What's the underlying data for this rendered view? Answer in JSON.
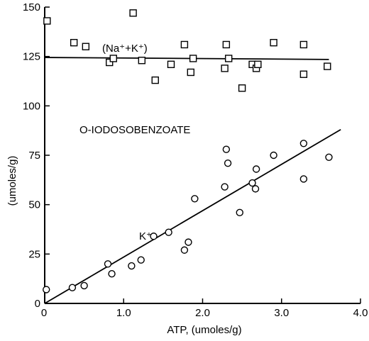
{
  "chart_data": {
    "type": "scatter",
    "title": "",
    "xlabel": "ATP, (umoles/g)",
    "ylabel": "(umoles/g)",
    "xlim": [
      0,
      4.0
    ],
    "ylim": [
      0,
      150
    ],
    "x_ticks": [
      {
        "value": 0,
        "label": "0"
      },
      {
        "value": 1.0,
        "label": "1.0"
      },
      {
        "value": 2.0,
        "label": "2.0"
      },
      {
        "value": 3.0,
        "label": "3.0"
      },
      {
        "value": 4.0,
        "label": "4.0"
      }
    ],
    "y_ticks": [
      {
        "value": 0,
        "label": "0"
      },
      {
        "value": 25,
        "label": "25"
      },
      {
        "value": 50,
        "label": "50"
      },
      {
        "value": 75,
        "label": "75"
      },
      {
        "value": 100,
        "label": "100"
      },
      {
        "value": 125,
        "label": "125"
      },
      {
        "value": 150,
        "label": "150"
      }
    ],
    "grid": false,
    "annotations": [
      "O-IODOSOBENZOATE"
    ],
    "series": [
      {
        "name": "(Na⁺+K⁺)",
        "marker": "square",
        "points": [
          [
            0.03,
            143
          ],
          [
            0.37,
            132
          ],
          [
            0.52,
            130
          ],
          [
            0.82,
            122
          ],
          [
            0.87,
            124
          ],
          [
            1.12,
            147
          ],
          [
            1.23,
            123
          ],
          [
            1.4,
            113
          ],
          [
            1.6,
            121
          ],
          [
            1.77,
            131
          ],
          [
            1.85,
            117
          ],
          [
            1.88,
            124
          ],
          [
            2.28,
            119
          ],
          [
            2.3,
            131
          ],
          [
            2.33,
            124
          ],
          [
            2.5,
            109
          ],
          [
            2.63,
            121
          ],
          [
            2.68,
            119
          ],
          [
            2.7,
            121
          ],
          [
            2.9,
            132
          ],
          [
            3.28,
            131
          ],
          [
            3.28,
            116
          ],
          [
            3.58,
            120
          ]
        ],
        "fit": {
          "x": [
            0,
            3.6
          ],
          "y": [
            124.5,
            123.5
          ]
        }
      },
      {
        "name": "K⁺",
        "marker": "circle",
        "points": [
          [
            0.02,
            7
          ],
          [
            0.35,
            8
          ],
          [
            0.5,
            9
          ],
          [
            0.8,
            20
          ],
          [
            0.85,
            15
          ],
          [
            1.1,
            19
          ],
          [
            1.22,
            22
          ],
          [
            1.38,
            34
          ],
          [
            1.57,
            36
          ],
          [
            1.77,
            27
          ],
          [
            1.82,
            31
          ],
          [
            1.9,
            53
          ],
          [
            2.28,
            59
          ],
          [
            2.3,
            78
          ],
          [
            2.32,
            71
          ],
          [
            2.47,
            46
          ],
          [
            2.63,
            61
          ],
          [
            2.67,
            58
          ],
          [
            2.68,
            68
          ],
          [
            2.9,
            75
          ],
          [
            3.28,
            81
          ],
          [
            3.28,
            63
          ],
          [
            3.6,
            74
          ]
        ],
        "fit": {
          "x": [
            0,
            3.75
          ],
          "y": [
            0,
            88
          ]
        }
      }
    ]
  }
}
